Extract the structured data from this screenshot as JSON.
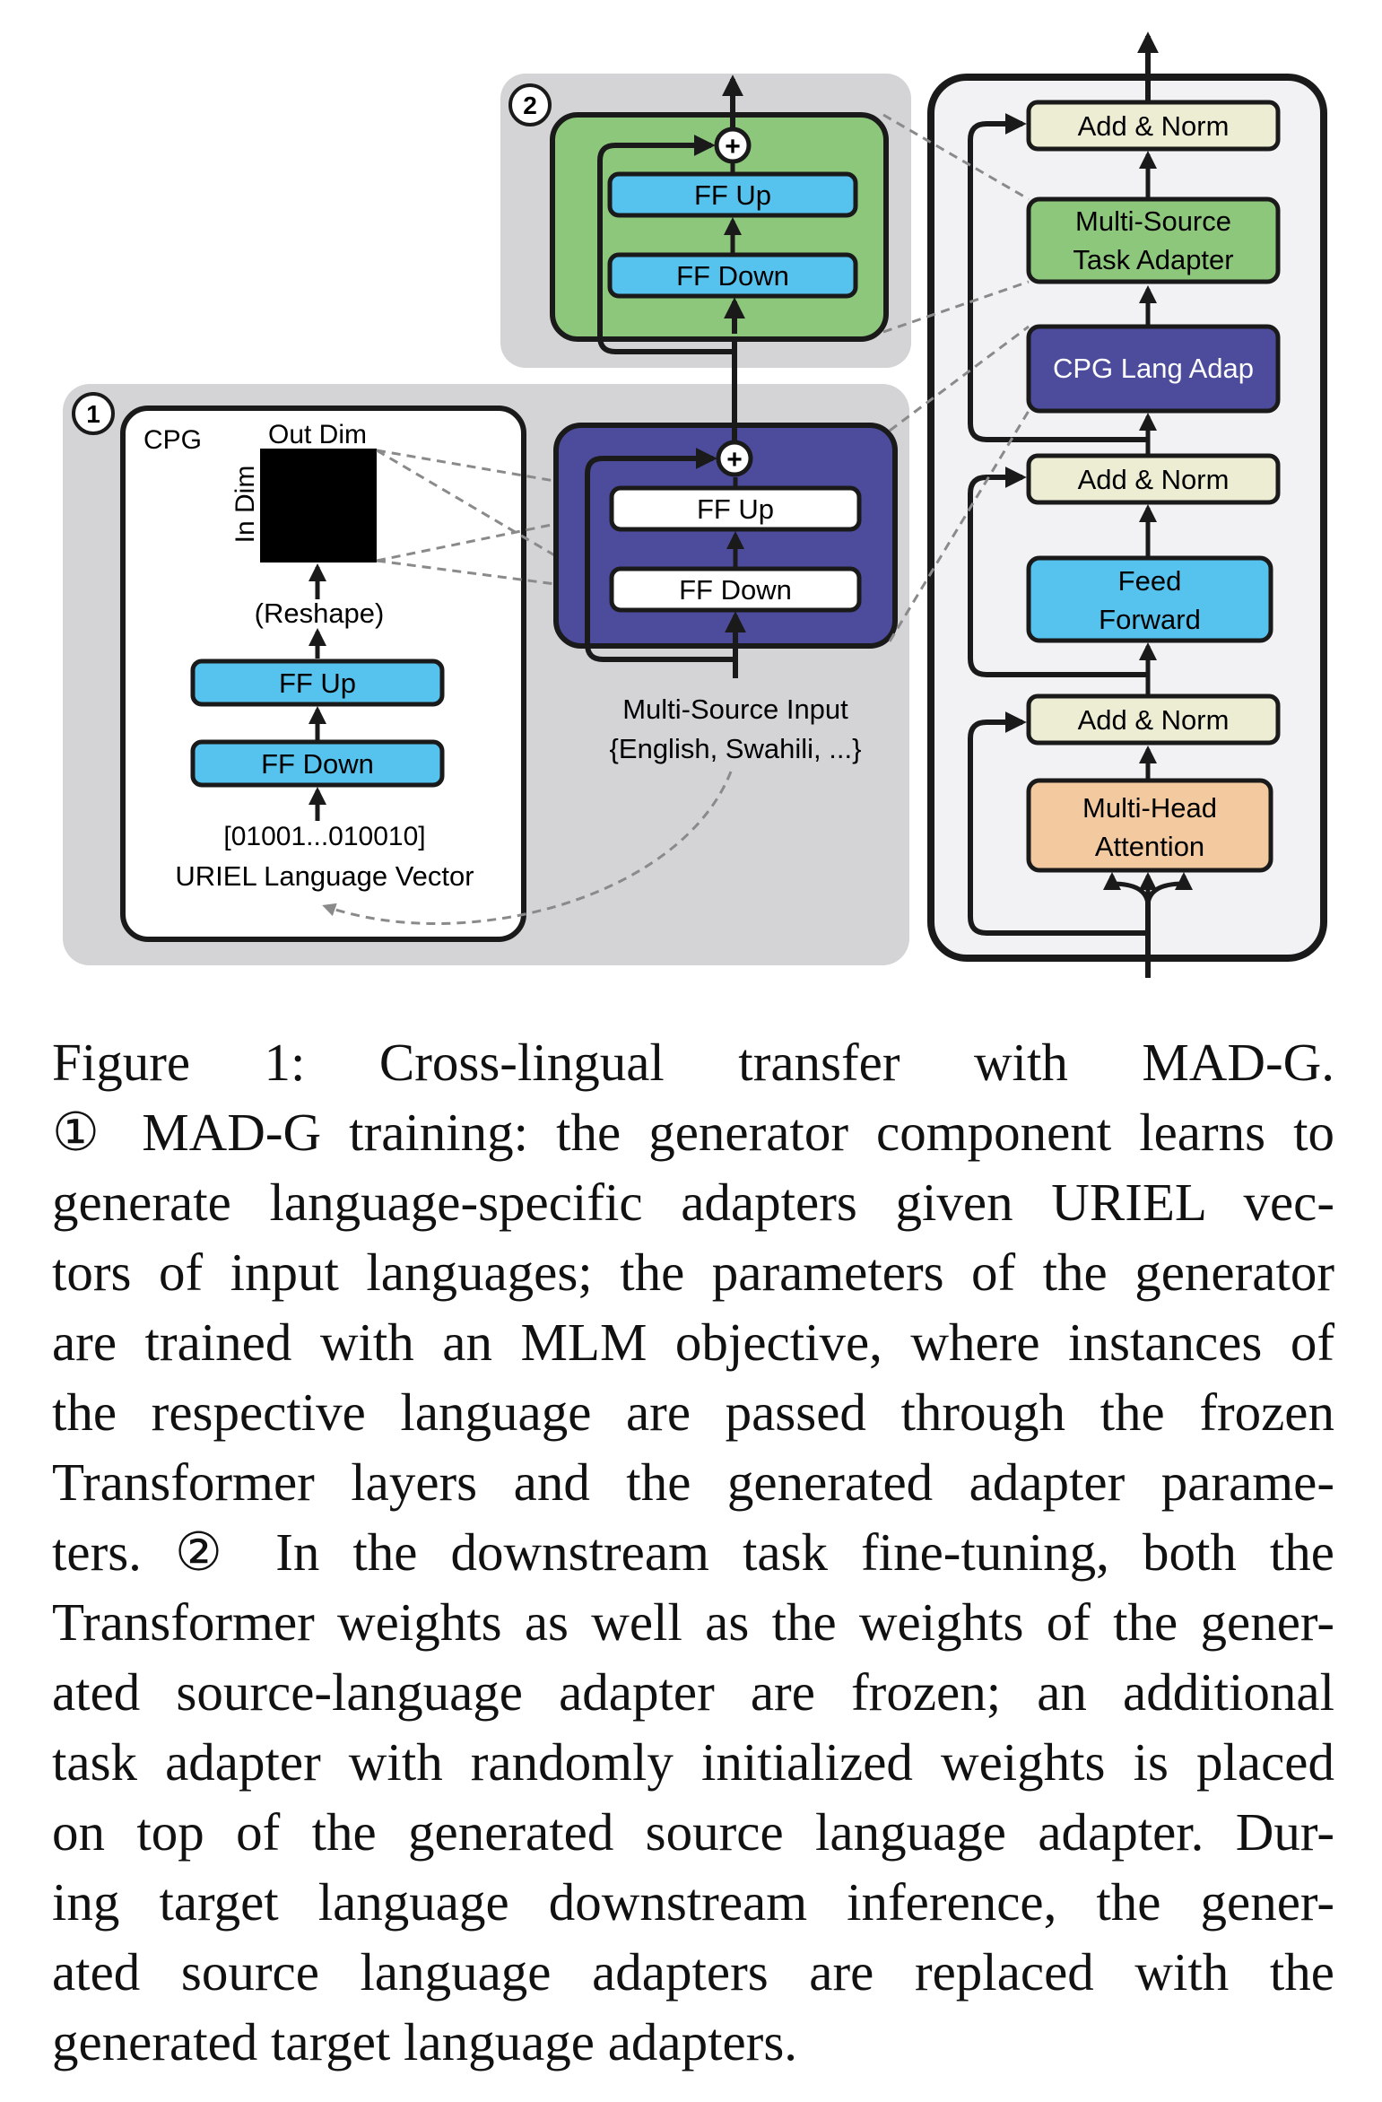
{
  "step_markers": {
    "one": "1",
    "two": "2"
  },
  "cpg": {
    "title": "CPG",
    "out_dim": "Out Dim",
    "in_dim": "In Dim",
    "reshape": "(Reshape)",
    "ff_up": "FF Up",
    "ff_down": "FF Down",
    "vector_bits": "[01001...010010]",
    "vector_label": "URIEL Language Vector"
  },
  "lang_adapter": {
    "ff_up": "FF Up",
    "ff_down": "FF Down",
    "plus": "+"
  },
  "task_adapter": {
    "ff_up": "FF Up",
    "ff_down": "FF Down",
    "plus": "+"
  },
  "input": {
    "line1": "Multi-Source Input",
    "line2": "{English, Swahili, ...}"
  },
  "transformer": {
    "add_norm_top": "Add & Norm",
    "task_adapter_line1": "Multi-Source",
    "task_adapter_line2": "Task Adapter",
    "cpg_lang_adap": "CPG Lang Adap",
    "add_norm_mid": "Add & Norm",
    "feed_forward_line1": "Feed",
    "feed_forward_line2": "Forward",
    "add_norm_bottom": "Add & Norm",
    "mha_line1": "Multi-Head",
    "mha_line2": "Attention"
  },
  "colors": {
    "ff_blue": "#55C3EE",
    "green": "#8DC77B",
    "purple": "#4D4C9C",
    "add_norm": "#EDEDD3",
    "attention": "#F3C9A0",
    "panel_grey": "#D4D4D6",
    "transformer_bg": "#F2F2F4"
  },
  "caption": {
    "lines": [
      "Figure 1:  Cross-lingual transfer with MAD-G.",
      "① MAD-G training: the generator component learns to",
      "generate language-specific adapters given URIEL vec-",
      "tors of input languages; the parameters of the generator",
      "are trained with an MLM objective, where instances of",
      "the respective language are passed through the frozen",
      "Transformer layers and the generated adapter parame-",
      "ters.  ② In the downstream task fine-tuning, both the",
      "Transformer weights as well as the weights of the gener-",
      "ated source-language adapter are frozen; an additional",
      "task adapter with randomly initialized weights is placed",
      "on top of the generated source language adapter. Dur-",
      "ing target language downstream inference, the gener-",
      "ated source language adapters are replaced with the",
      "generated target language adapters."
    ]
  }
}
